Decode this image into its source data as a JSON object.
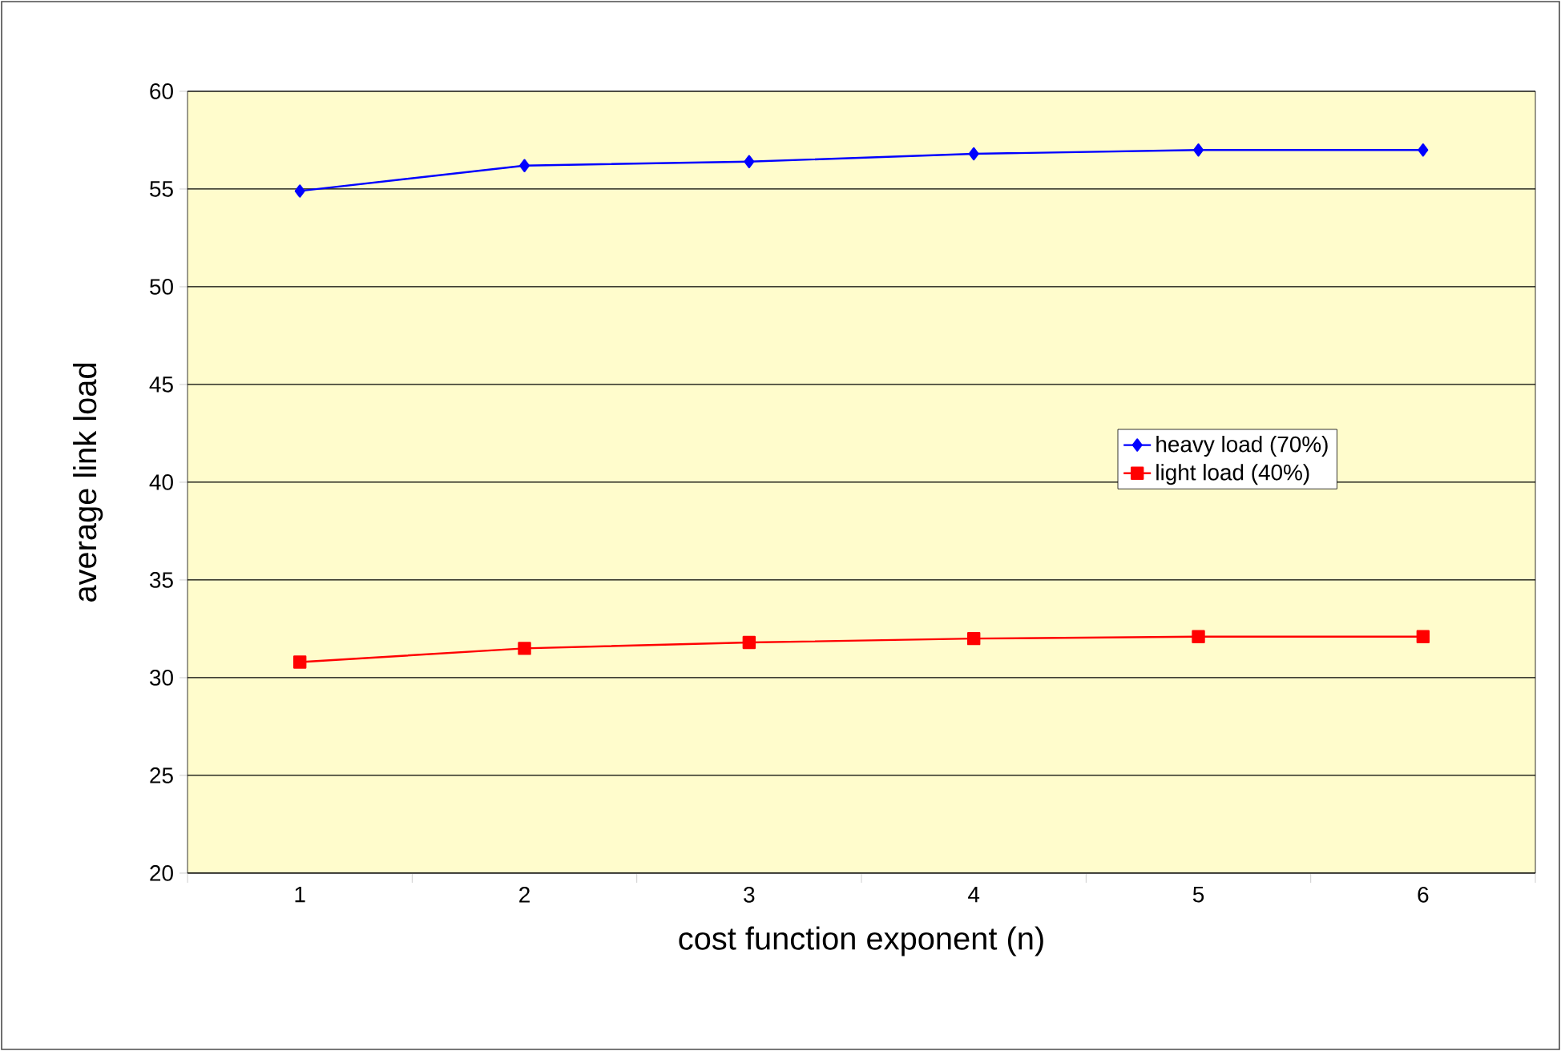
{
  "chart_data": {
    "type": "line",
    "xlabel": "cost function exponent (n)",
    "ylabel": "average link load",
    "categories": [
      "1",
      "2",
      "3",
      "4",
      "5",
      "6"
    ],
    "series": [
      {
        "name": "heavy load (70%)",
        "color": "#0000ff",
        "marker": "diamond",
        "values": [
          54.9,
          56.2,
          56.4,
          56.8,
          57.0,
          57.0
        ]
      },
      {
        "name": "light load (40%)",
        "color": "#ff0000",
        "marker": "square",
        "values": [
          30.8,
          31.5,
          31.8,
          32.0,
          32.1,
          32.1
        ]
      }
    ],
    "ylim": [
      20,
      60
    ],
    "yticks": [
      20,
      25,
      30,
      35,
      40,
      45,
      50,
      55,
      60
    ],
    "grid": "y",
    "legend": "right",
    "line_style": "solid"
  }
}
